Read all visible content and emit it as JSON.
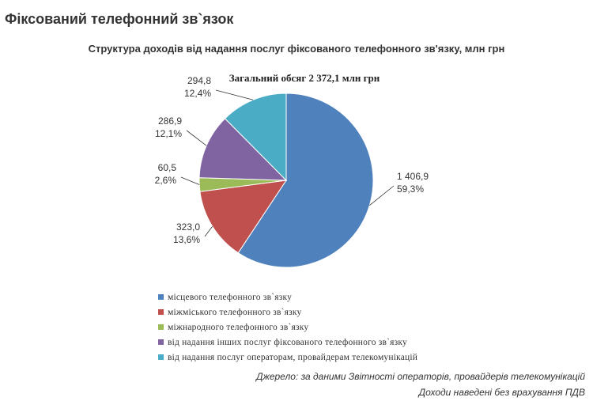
{
  "header": {
    "title": "Фіксований телефонний зв`язок"
  },
  "chart_data": {
    "type": "pie",
    "title": "Структура доходів від надання послуг фіксованого телефонного зв'язку, млн грн",
    "subtitle": "Загальний обсяг 2 372,1 млн грн",
    "slices": [
      {
        "label": "місцевого телефонного зв`язку",
        "value": 1406.9,
        "value_text": "1 406,9",
        "percent_text": "59,3%",
        "color": "#4f81bd"
      },
      {
        "label": "міжміського телефонного зв`язку",
        "value": 323.0,
        "value_text": "323,0",
        "percent_text": "13,6%",
        "color": "#c0504d"
      },
      {
        "label": "міжнародного телефонного зв`язку",
        "value": 60.5,
        "value_text": "60,5",
        "percent_text": "2,6%",
        "color": "#9bbb59"
      },
      {
        "label": "від надання інших послуг фіксованого телефонного зв`язку",
        "value": 286.9,
        "value_text": "286,9",
        "percent_text": "12,1%",
        "color": "#8064a2"
      },
      {
        "label": "від надання послуг операторам, провайдерам телекомунікацій",
        "value": 294.8,
        "value_text": "294,8",
        "percent_text": "12,4%",
        "color": "#4bacc6"
      }
    ],
    "legend_position": "bottom"
  },
  "source": {
    "line1": "Джерело: за даними Звітності операторів, провайдерів телекомунікацій",
    "line2": "Доходи наведені без врахування ПДВ"
  }
}
